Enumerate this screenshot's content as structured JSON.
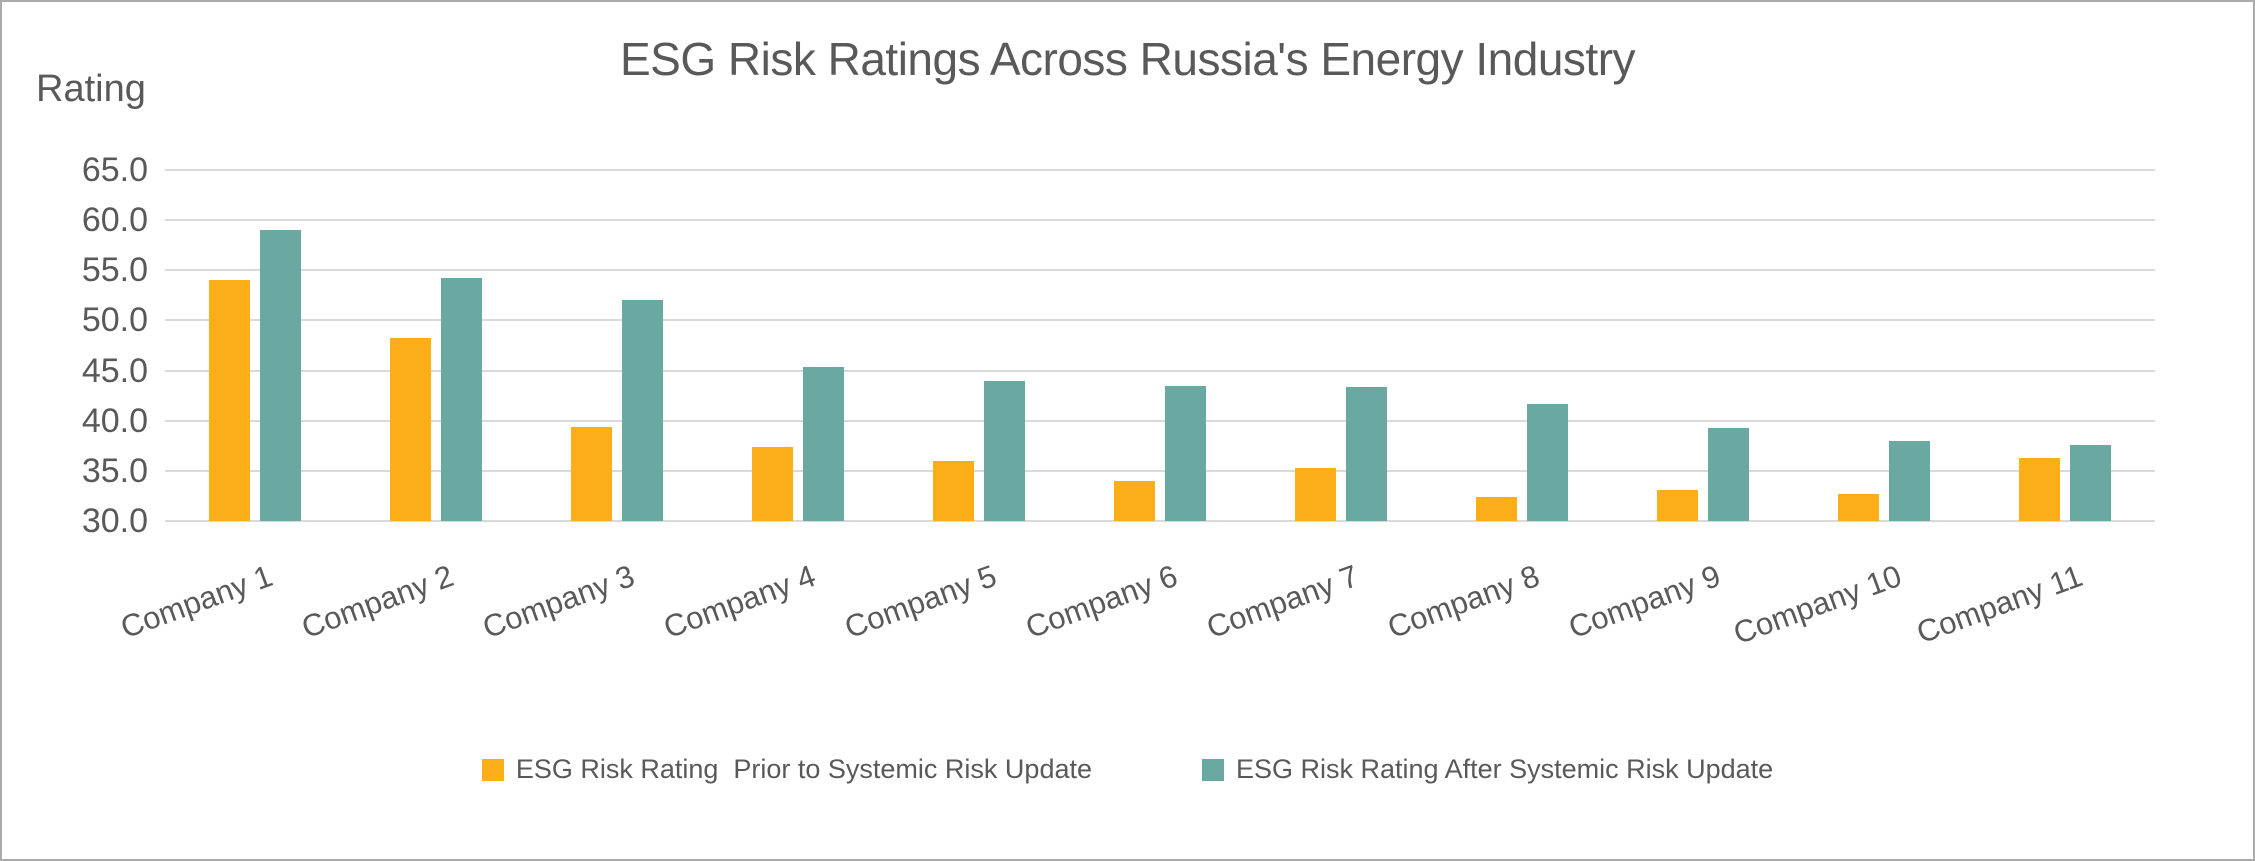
{
  "chart": {
    "title": "ESG Risk Ratings Across Russia's Energy Industry",
    "y_axis_title": "Rating"
  },
  "chart_data": {
    "type": "bar",
    "title": "ESG Risk Ratings Across Russia's Energy Industry",
    "xlabel": "",
    "ylabel": "Rating",
    "categories": [
      "Company 1",
      "Company 2",
      "Company 3",
      "Company 4",
      "Company 5",
      "Company 6",
      "Company 7",
      "Company 8",
      "Company 9",
      "Company 10",
      "Company 11"
    ],
    "series": [
      {
        "name": "ESG Risk Rating  Prior to Systemic Risk Update",
        "color": "#FBAE17",
        "values": [
          54.0,
          48.2,
          39.4,
          37.4,
          36.0,
          34.0,
          35.3,
          32.4,
          33.1,
          32.7,
          36.3
        ]
      },
      {
        "name": "ESG Risk Rating After Systemic Risk Update",
        "color": "#6AA9A2",
        "values": [
          59.0,
          54.2,
          52.0,
          45.4,
          44.0,
          43.5,
          43.4,
          41.7,
          39.3,
          38.0,
          37.6
        ]
      }
    ],
    "ylim": [
      30,
      65
    ],
    "y_tick_step": 5,
    "y_tick_labels": [
      "65.0",
      "60.0",
      "55.0",
      "50.0",
      "45.0",
      "40.0",
      "35.0",
      "30.0"
    ],
    "grid": true,
    "gridline_color": "#D9D9D9",
    "text_color": "#595959",
    "legend_position": "bottom"
  }
}
